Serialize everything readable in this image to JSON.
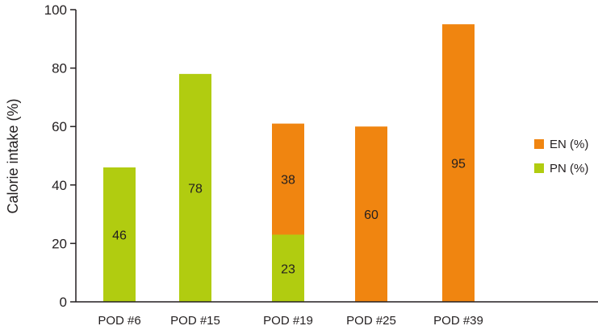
{
  "chart_data": {
    "type": "bar",
    "stacked": true,
    "title": "",
    "xlabel": "",
    "ylabel": "Calorie intake (%)",
    "ylim": [
      0,
      100
    ],
    "yticks": [
      0,
      20,
      40,
      60,
      80,
      100
    ],
    "categories": [
      "POD #6",
      "POD #15",
      "POD #19",
      "POD #25",
      "POD #39"
    ],
    "series": [
      {
        "name": "PN (%)",
        "color": "#b1cc10",
        "values": [
          46,
          78,
          23,
          0,
          0
        ]
      },
      {
        "name": "EN (%)",
        "color": "#f08510",
        "values": [
          0,
          0,
          38,
          60,
          95
        ]
      }
    ],
    "legend_order": [
      "EN (%)",
      "PN (%)"
    ],
    "legend_position": "right",
    "grid": false
  }
}
